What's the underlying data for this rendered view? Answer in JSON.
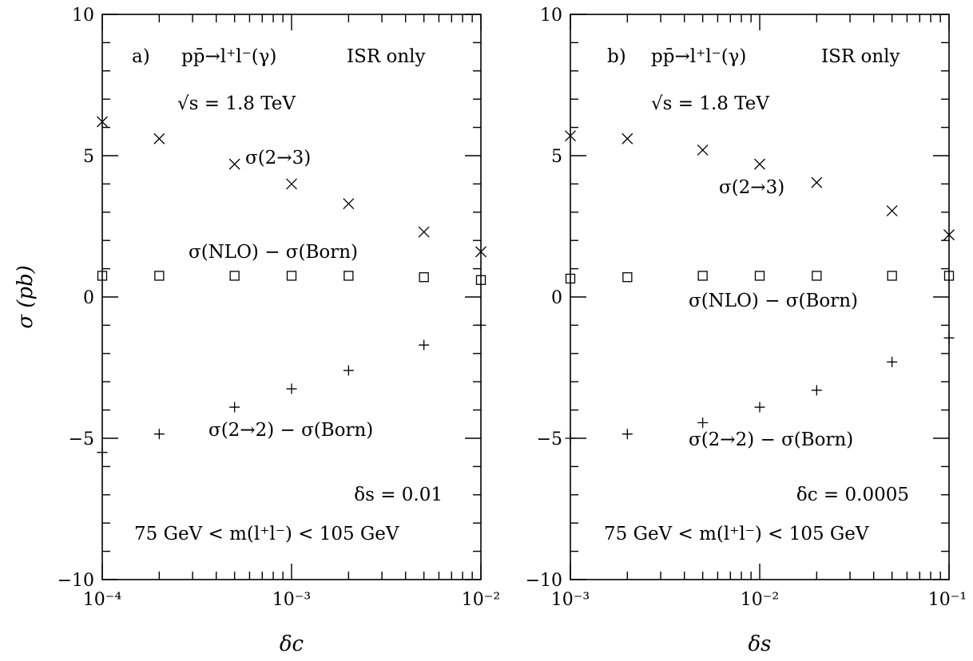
{
  "chart_data": [
    {
      "type": "scatter",
      "panel_label": "a)",
      "process": "pp̄→l⁺l⁻(γ)",
      "subtitle": "ISR only",
      "energy": "√s = 1.8 TeV",
      "cut_label": "δs = 0.01",
      "mass_window": "75 GeV < m(l⁺l⁻) < 105 GeV",
      "xlabel": "δc",
      "ylabel": "σ (pb)",
      "xscale": "log",
      "xlim": [
        0.0001,
        0.01
      ],
      "ylim": [
        -10,
        10
      ],
      "x_ticks": [
        "10⁻⁴",
        "10⁻³",
        "10⁻²"
      ],
      "y_ticks": [
        "10",
        "5",
        "0",
        "−5",
        "−10"
      ],
      "x": [
        0.0001,
        0.0002,
        0.0005,
        0.001,
        0.002,
        0.005,
        0.01
      ],
      "series": [
        {
          "name": "σ(2→3)",
          "marker": "cross-x",
          "values": [
            6.2,
            5.6,
            4.7,
            4.0,
            3.3,
            2.3,
            1.6
          ]
        },
        {
          "name": "σ(NLO) − σ(Born)",
          "marker": "square",
          "values": [
            0.75,
            0.75,
            0.75,
            0.75,
            0.75,
            0.7,
            0.6
          ]
        },
        {
          "name": "σ(2→2) − σ(Born)",
          "marker": "plus",
          "values": [
            -5.5,
            -4.85,
            -3.9,
            -3.25,
            -2.6,
            -1.7,
            -1.0
          ]
        }
      ],
      "series_labels": [
        "σ(2→3)",
        "σ(NLO) − σ(Born)",
        "σ(2→2) − σ(Born)"
      ]
    },
    {
      "type": "scatter",
      "panel_label": "b)",
      "process": "pp̄→l⁺l⁻(γ)",
      "subtitle": "ISR only",
      "energy": "√s = 1.8 TeV",
      "cut_label": "δc = 0.0005",
      "mass_window": "75 GeV < m(l⁺l⁻) < 105 GeV",
      "xlabel": "δs",
      "ylabel": "",
      "xscale": "log",
      "xlim": [
        0.001,
        0.1
      ],
      "ylim": [
        -10,
        10
      ],
      "x_ticks": [
        "10⁻³",
        "10⁻²",
        "10⁻¹"
      ],
      "y_ticks": [
        "10",
        "5",
        "0",
        "−5",
        "−10"
      ],
      "x": [
        0.001,
        0.002,
        0.005,
        0.01,
        0.02,
        0.05,
        0.1
      ],
      "series": [
        {
          "name": "σ(2→3)",
          "marker": "cross-x",
          "values": [
            5.7,
            5.6,
            5.2,
            4.7,
            4.05,
            3.05,
            2.2
          ]
        },
        {
          "name": "σ(NLO) − σ(Born)",
          "marker": "square",
          "values": [
            0.65,
            0.7,
            0.75,
            0.75,
            0.75,
            0.75,
            0.75
          ]
        },
        {
          "name": "σ(2→2) − σ(Born)",
          "marker": "plus",
          "values": [
            -5.0,
            -4.85,
            -4.45,
            -3.9,
            -3.3,
            -2.3,
            -1.45
          ]
        }
      ],
      "series_labels": [
        "σ(2→3)",
        "σ(NLO) − σ(Born)",
        "σ(2→2) − σ(Born)"
      ]
    }
  ]
}
